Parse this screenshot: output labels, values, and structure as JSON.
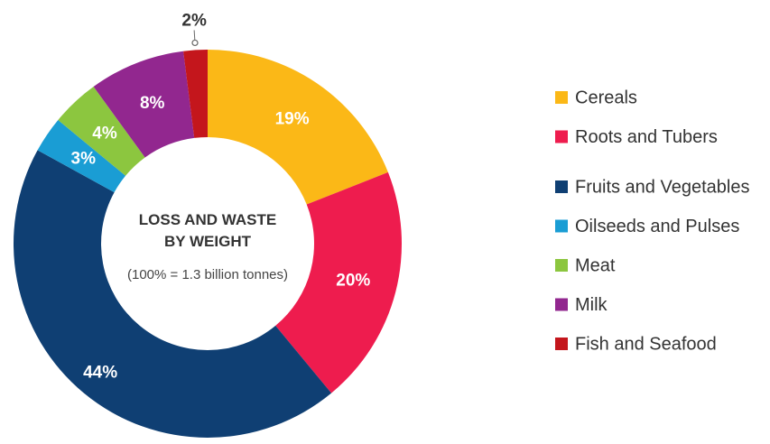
{
  "chart_data": {
    "type": "donut",
    "center_title": "LOSS AND WASTE BY WEIGHT",
    "center_subtitle": "(100% = 1.3 billion tonnes)",
    "categories": [
      "Cereals",
      "Roots and Tubers",
      "Fruits and Vegetables",
      "Oilseeds and Pulses",
      "Meat",
      "Milk",
      "Fish and Seafood"
    ],
    "values": [
      19,
      20,
      44,
      3,
      4,
      8,
      2
    ],
    "value_labels": [
      "19%",
      "20%",
      "44%",
      "3%",
      "4%",
      "8%",
      "2%"
    ],
    "colors": [
      "#fbb817",
      "#ee1c4e",
      "#0f3f73",
      "#1a9dd4",
      "#8cc63f",
      "#92278f",
      "#c4161c"
    ],
    "legend": "right"
  }
}
